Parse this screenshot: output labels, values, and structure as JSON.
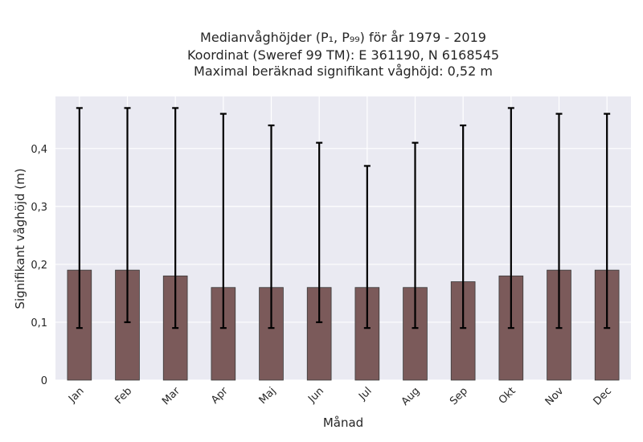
{
  "chart_data": {
    "type": "bar",
    "title_lines": [
      "Medianvåghöjder (P₁, P₉₉) för år 1979 - 2019",
      "Koordinat (Sweref 99 TM): E 361190, N 6168545",
      "Maximal beräknad signifikant våghöjd: 0,52 m"
    ],
    "xlabel": "Månad",
    "ylabel": "Signifikant våghöjd (m)",
    "categories": [
      "Jan",
      "Feb",
      "Mar",
      "Apr",
      "Maj",
      "Jun",
      "Jul",
      "Aug",
      "Sep",
      "Okt",
      "Nov",
      "Dec"
    ],
    "values": [
      0.19,
      0.19,
      0.18,
      0.16,
      0.16,
      0.16,
      0.16,
      0.16,
      0.17,
      0.18,
      0.19,
      0.19
    ],
    "err_low": [
      0.09,
      0.1,
      0.09,
      0.09,
      0.09,
      0.1,
      0.09,
      0.09,
      0.09,
      0.09,
      0.09,
      0.09
    ],
    "err_high": [
      0.47,
      0.47,
      0.47,
      0.46,
      0.44,
      0.41,
      0.37,
      0.41,
      0.44,
      0.47,
      0.46,
      0.46
    ],
    "ylim": [
      0,
      0.49
    ],
    "yticks": [
      0,
      0.1,
      0.2,
      0.3,
      0.4
    ],
    "ytick_labels": [
      "0",
      "0,1",
      "0,2",
      "0,3",
      "0,4"
    ],
    "grid": true,
    "colors": {
      "bar": "#7b5a5a",
      "bar_edge": "#3a3a3a",
      "plot_bg": "#eaeaf2",
      "grid": "#ffffff",
      "error": "#000000"
    }
  }
}
